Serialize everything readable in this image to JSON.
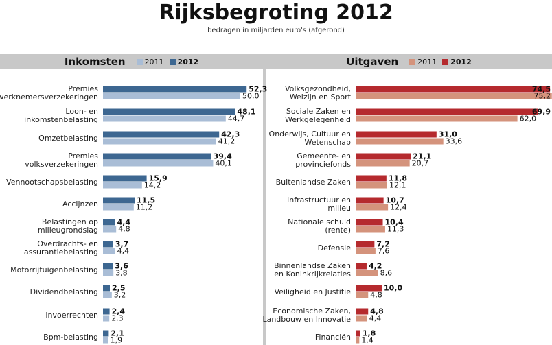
{
  "title": "Rijksbegroting 2012",
  "subtitle": "bedragen in miljarden euro's (afgerond)",
  "colors": {
    "income_2011": "#a9bdd6",
    "income_2012": "#3d6791",
    "expense_2011": "#d4937c",
    "expense_2012": "#b52a2e",
    "header_bg": "#c8c8c8"
  },
  "chart_data": [
    {
      "type": "bar",
      "title": "Inkomsten",
      "legend": [
        "2011",
        "2012"
      ],
      "categories": [
        "Premies werknemersverzekeringen",
        "Loon- en inkomstenbelasting",
        "Omzetbelasting",
        "Premies volksverzekeringen",
        "Vennootschapsbelasting",
        "Accijnzen",
        "Belastingen op milieugrondslag",
        "Overdrachts- en assurantiebelasting",
        "Motorrijtuigenbelasting",
        "Dividendbelasting",
        "Invoerrechten",
        "Bpm-belasting"
      ],
      "label_lines": [
        [
          "Premies",
          "werknemersverzekeringen"
        ],
        [
          "Loon- en",
          "inkomstenbelasting"
        ],
        [
          "Omzetbelasting"
        ],
        [
          "Premies",
          "volksverzekeringen"
        ],
        [
          "Vennootschapsbelasting"
        ],
        [
          "Accijnzen"
        ],
        [
          "Belastingen op",
          "milieugrondslag"
        ],
        [
          "Overdrachts- en",
          "assurantiebelasting"
        ],
        [
          "Motorrijtuigenbelasting"
        ],
        [
          "Dividendbelasting"
        ],
        [
          "Invoerrechten"
        ],
        [
          "Bpm-belasting"
        ]
      ],
      "series": [
        {
          "name": "2012",
          "values": [
            52.3,
            48.1,
            42.3,
            39.4,
            15.9,
            11.5,
            4.4,
            3.7,
            3.6,
            2.5,
            2.4,
            2.1
          ],
          "labels": [
            "52,3",
            "48,1",
            "42,3",
            "39,4",
            "15,9",
            "11,5",
            "4,4",
            "3,7",
            "3,6",
            "2,5",
            "2,4",
            "2,1"
          ]
        },
        {
          "name": "2011",
          "values": [
            50.0,
            44.7,
            41.2,
            40.1,
            14.2,
            11.2,
            4.8,
            4.4,
            3.8,
            3.2,
            2.3,
            1.9
          ],
          "labels": [
            "50,0",
            "44,7",
            "41,2",
            "40,1",
            "14,2",
            "11,2",
            "4,8",
            "4,4",
            "3,8",
            "3,2",
            "2,3",
            "1,9"
          ]
        }
      ]
    },
    {
      "type": "bar",
      "title": "Uitgaven",
      "legend": [
        "2011",
        "2012"
      ],
      "categories": [
        "Volksgezondheid, Welzijn en Sport",
        "Sociale Zaken en Werkgelegenheid",
        "Onderwijs, Cultuur en Wetenschap",
        "Gemeente- en provinciefonds",
        "Buitenlandse Zaken",
        "Infrastructuur en milieu",
        "Nationale schuld (rente)",
        "Defensie",
        "Binnenlandse Zaken en Koninkrijkrelaties",
        "Veiligheid en Justitie",
        "Economische Zaken, Landbouw en Innovatie",
        "Financiën"
      ],
      "label_lines": [
        [
          "Volksgezondheid,",
          "Welzijn en Sport"
        ],
        [
          "Sociale Zaken en",
          "Werkgelegenheid"
        ],
        [
          "Onderwijs, Cultuur en",
          "Wetenschap"
        ],
        [
          "Gemeente- en",
          "provinciefonds"
        ],
        [
          "Buitenlandse Zaken"
        ],
        [
          "Infrastructuur en",
          "milieu"
        ],
        [
          "Nationale schuld",
          "(rente)"
        ],
        [
          "Defensie"
        ],
        [
          "Binnenlandse Zaken",
          "en Koninkrijkrelaties"
        ],
        [
          "Veiligheid en Justitie"
        ],
        [
          "Economische Zaken,",
          "Landbouw en Innovatie"
        ],
        [
          "Financiën"
        ]
      ],
      "series": [
        {
          "name": "2012",
          "values": [
            74.5,
            69.9,
            31.0,
            21.1,
            11.8,
            10.7,
            10.4,
            7.2,
            4.2,
            10.0,
            4.8,
            1.8
          ],
          "labels": [
            "74,5",
            "69,9",
            "31,0",
            "21,1",
            "11,8",
            "10,7",
            "10,4",
            "7,2",
            "4,2",
            "10,0",
            "4,8",
            "1,8"
          ]
        },
        {
          "name": "2011",
          "values": [
            75.2,
            62.0,
            33.6,
            20.7,
            12.1,
            12.4,
            11.3,
            7.6,
            8.6,
            4.8,
            4.4,
            1.4
          ],
          "labels": [
            "75,2",
            "62,0",
            "33,6",
            "20,7",
            "12,1",
            "12,4",
            "11,3",
            "7,6",
            "8,6",
            "4,8",
            "4,4",
            "1,4"
          ]
        }
      ]
    }
  ]
}
